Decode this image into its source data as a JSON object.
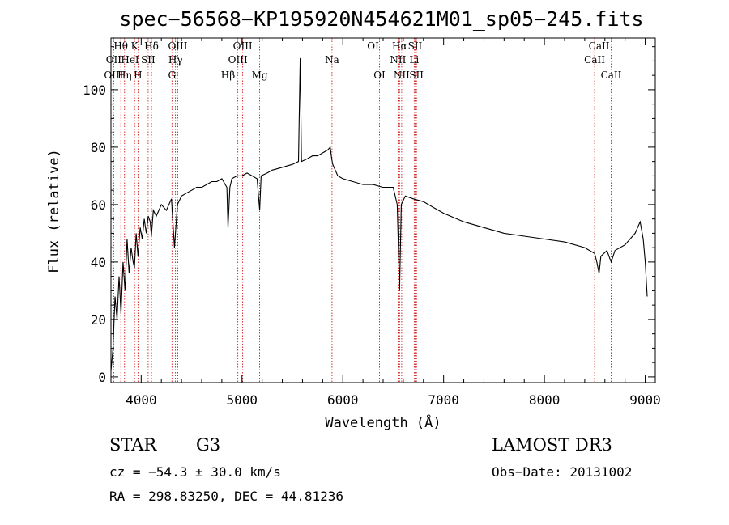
{
  "chart_data": {
    "type": "line",
    "title": "spec−56568−KP195920N454621M01_sp05−245.fits",
    "xlabel": "Wavelength (Å)",
    "ylabel": "Flux (relative)",
    "xlim": [
      3700,
      9100
    ],
    "ylim": [
      -2,
      118
    ],
    "x_ticks": [
      4000,
      5000,
      6000,
      7000,
      8000,
      9000
    ],
    "y_ticks": [
      0,
      20,
      40,
      60,
      80,
      100
    ],
    "series": [
      {
        "name": "flux",
        "x": [
          3700,
          3720,
          3740,
          3760,
          3780,
          3800,
          3820,
          3840,
          3860,
          3880,
          3900,
          3920,
          3933,
          3950,
          3968,
          3990,
          4010,
          4030,
          4050,
          4070,
          4090,
          4101,
          4120,
          4150,
          4200,
          4250,
          4300,
          4330,
          4340,
          4360,
          4400,
          4450,
          4500,
          4550,
          4600,
          4650,
          4700,
          4750,
          4800,
          4850,
          4861,
          4880,
          4900,
          4950,
          5000,
          5050,
          5100,
          5150,
          5175,
          5190,
          5250,
          5300,
          5400,
          5500,
          5560,
          5577,
          5590,
          5650,
          5700,
          5750,
          5800,
          5850,
          5875,
          5890,
          5900,
          5950,
          6000,
          6100,
          6200,
          6300,
          6400,
          6500,
          6540,
          6563,
          6580,
          6620,
          6700,
          6800,
          6900,
          7000,
          7200,
          7400,
          7600,
          7800,
          8000,
          8200,
          8400,
          8498,
          8520,
          8542,
          8560,
          8620,
          8662,
          8700,
          8800,
          8900,
          8950,
          8980,
          9000,
          9020
        ],
        "values": [
          2,
          10,
          28,
          20,
          35,
          22,
          40,
          30,
          48,
          36,
          45,
          40,
          38,
          50,
          42,
          52,
          48,
          55,
          50,
          56,
          54,
          49,
          58,
          56,
          60,
          58,
          62,
          45,
          50,
          60,
          63,
          64,
          65,
          66,
          66,
          67,
          68,
          68,
          69,
          66,
          52,
          66,
          69,
          70,
          70,
          71,
          70,
          69,
          58,
          70,
          71,
          72,
          73,
          74,
          75,
          111,
          75,
          76,
          77,
          77,
          78,
          79,
          80,
          76,
          74,
          70,
          69,
          68,
          67,
          67,
          66,
          66,
          60,
          30,
          60,
          63,
          62,
          61,
          59,
          57,
          54,
          52,
          50,
          49,
          48,
          47,
          45,
          43,
          40,
          36,
          42,
          44,
          40,
          44,
          46,
          50,
          54,
          48,
          40,
          28
        ]
      }
    ],
    "line_markers": [
      {
        "label": "Hθ",
        "x": 3798,
        "row": 1
      },
      {
        "label": "OII",
        "x": 3727,
        "row": 2
      },
      {
        "label": "OIII",
        "x": 3727,
        "row": 3
      },
      {
        "label": "Hη",
        "x": 3835,
        "row": 3
      },
      {
        "label": "HeI",
        "x": 3889,
        "row": 2
      },
      {
        "label": "K",
        "x": 3934,
        "row": 1
      },
      {
        "label": "SII",
        "x": 4069,
        "row": 2
      },
      {
        "label": "H",
        "x": 3968,
        "row": 3
      },
      {
        "label": "Hδ",
        "x": 4102,
        "row": 1
      },
      {
        "label": "OIII",
        "x": 4363,
        "row": 1
      },
      {
        "label": "Hγ",
        "x": 4340,
        "row": 2
      },
      {
        "label": "G",
        "x": 4305,
        "row": 3
      },
      {
        "label": "Hβ",
        "x": 4861,
        "row": 3
      },
      {
        "label": "OIII",
        "x": 5007,
        "row": 1
      },
      {
        "label": "OIII",
        "x": 4959,
        "row": 2
      },
      {
        "label": "Mg",
        "x": 5175,
        "row": 3
      },
      {
        "label": "Na",
        "x": 5893,
        "row": 2
      },
      {
        "label": "OI",
        "x": 6300,
        "row": 1
      },
      {
        "label": "OI",
        "x": 6364,
        "row": 3
      },
      {
        "label": "Hα",
        "x": 6563,
        "row": 1
      },
      {
        "label": "NII",
        "x": 6548,
        "row": 2
      },
      {
        "label": "NII",
        "x": 6584,
        "row": 3
      },
      {
        "label": "SII",
        "x": 6717,
        "row": 1
      },
      {
        "label": "Li",
        "x": 6708,
        "row": 2
      },
      {
        "label": "SII",
        "x": 6731,
        "row": 3
      },
      {
        "label": "CaII",
        "x": 8542,
        "row": 1
      },
      {
        "label": "CaII",
        "x": 8498,
        "row": 2
      },
      {
        "label": "CaII",
        "x": 8662,
        "row": 3
      }
    ]
  },
  "info": {
    "object_class": "STAR",
    "subclass": "G3",
    "survey": "LAMOST DR3",
    "cz": "cz = −54.3 ± 30.0 km/s",
    "obs_date": "Obs−Date: 20131002",
    "coords": "RA = 298.83250, DEC =  44.81236"
  },
  "colors": {
    "line_marker": "#cc0000",
    "spectrum": "#000000"
  }
}
